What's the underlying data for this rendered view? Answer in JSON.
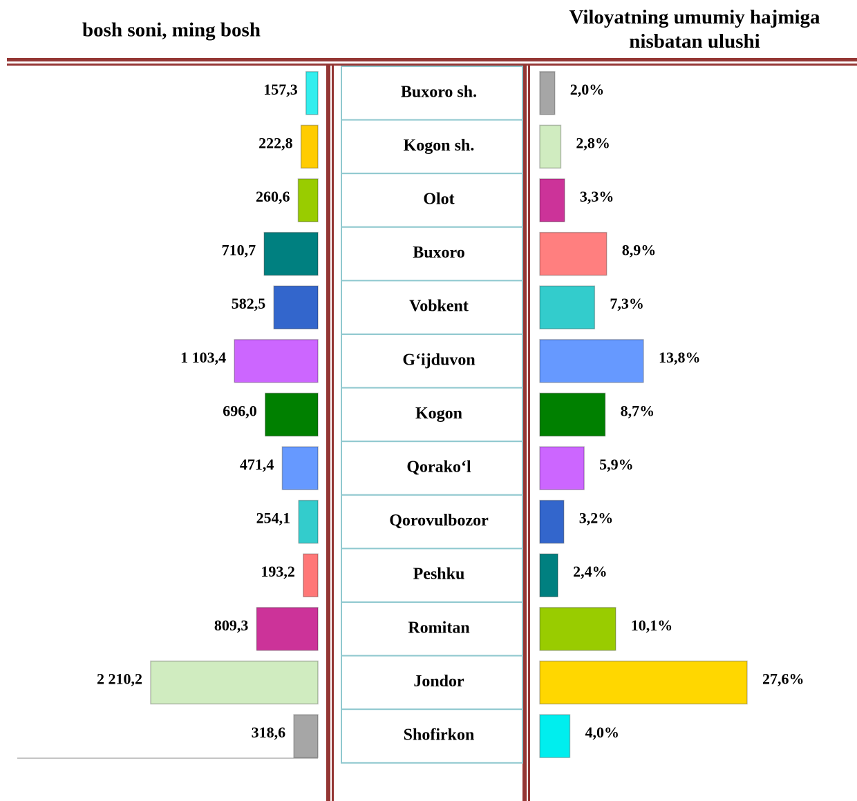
{
  "chart_data": {
    "type": "bar",
    "categories": [
      "Buxoro sh.",
      "Kogon sh.",
      "Olot",
      "Buxoro",
      "Vobkent",
      "G‘ijduvon",
      "Kogon",
      "Qorako‘l",
      "Qorovulbozor",
      "Peshku",
      "Romitan",
      "Jondor",
      "Shofirkon"
    ],
    "series": [
      {
        "name": "bosh soni, ming bosh",
        "values": [
          157.3,
          222.8,
          260.6,
          710.7,
          582.5,
          1103.4,
          696.0,
          471.4,
          254.1,
          193.2,
          809.3,
          2210.2,
          318.6
        ],
        "value_labels": [
          "157,3",
          "222,8",
          "260,6",
          "710,7",
          "582,5",
          "1 103,4",
          "696,0",
          "471,4",
          "254,1",
          "193,2",
          "809,3",
          "2 210,2",
          "318,6"
        ],
        "colors": [
          "#33eeee",
          "#ffcc00",
          "#99cc00",
          "#008080",
          "#3366cc",
          "#cc66ff",
          "#008000",
          "#6699ff",
          "#33cccc",
          "#ff7777",
          "#cc3399",
          "#d0ecc0",
          "#a6a6a6"
        ]
      },
      {
        "name": "Viloyatning umumiy hajmiga nisbatan ulushi",
        "values": [
          2.0,
          2.8,
          3.3,
          8.9,
          7.3,
          13.8,
          8.7,
          5.9,
          3.2,
          2.4,
          10.1,
          27.6,
          4.0
        ],
        "value_labels": [
          "2,0%",
          "2,8%",
          "3,3%",
          "8,9%",
          "7,3%",
          "13,8%",
          "8,7%",
          "5,9%",
          "3,2%",
          "2,4%",
          "10,1%",
          "27,6%",
          "4,0%"
        ],
        "colors": [
          "#a6a6a6",
          "#d0ecc0",
          "#cc3399",
          "#ff7f7f",
          "#33cccc",
          "#6699ff",
          "#008000",
          "#cc66ff",
          "#3366cc",
          "#008080",
          "#99cc00",
          "#ffd700",
          "#00eeee"
        ]
      }
    ]
  }
}
